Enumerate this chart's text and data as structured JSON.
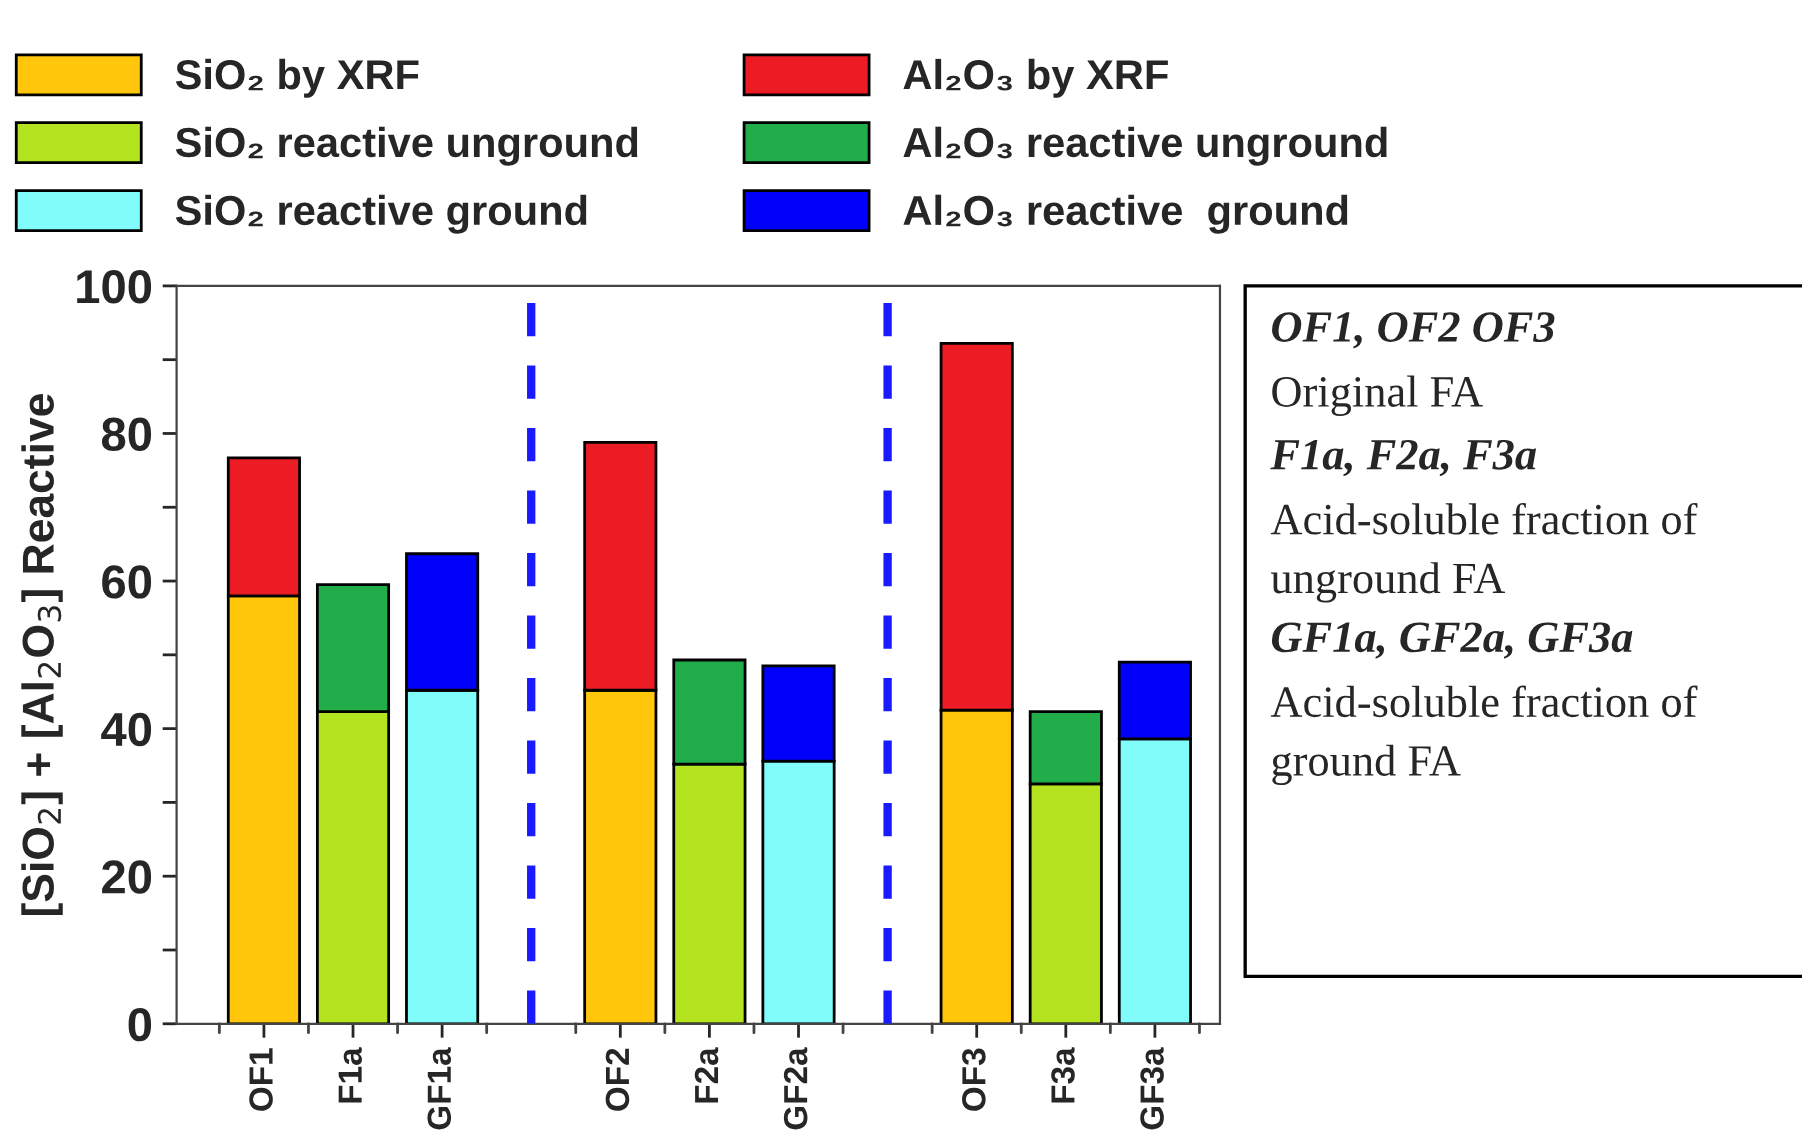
{
  "chart_data": {
    "type": "bar",
    "stacked": true,
    "ylabel": "[SiO$_{2}$] + [Al$_{2}$O$_{3}$] Reactive",
    "categories": [
      "OF1",
      "F1a",
      "GF1a",
      null,
      "OF2",
      "F2a",
      "GF2a",
      null,
      "OF3",
      "F3a",
      "GF3a"
    ],
    "ylim": [
      0,
      100
    ],
    "yticks": [
      0,
      {
        "value": 10,
        "label": null
      },
      20,
      {
        "value": 30,
        "label": null
      },
      40,
      {
        "value": 50,
        "label": null
      },
      60,
      {
        "value": 70,
        "label": null
      },
      80,
      {
        "value": 90,
        "label": null
      },
      100
    ],
    "series": [
      {
        "name": "SiO₂ by XRF",
        "color": "#ffc60b",
        "values": [
          58.0,
          null,
          null,
          null,
          45.2,
          null,
          null,
          null,
          42.5,
          null,
          null
        ]
      },
      {
        "name": "SiO₂ reactive unground",
        "color": "#b3e41f",
        "values": [
          null,
          42.3,
          null,
          null,
          null,
          35.2,
          null,
          null,
          null,
          32.5,
          null
        ]
      },
      {
        "name": "SiO₂ reactive ground",
        "color": "#80fdfb",
        "values": [
          null,
          null,
          45.2,
          null,
          null,
          null,
          35.6,
          null,
          null,
          null,
          38.6
        ]
      },
      {
        "name": "Al₂O₃ by XRF",
        "color": "#ec1c24",
        "values": [
          18.7,
          null,
          null,
          null,
          33.6,
          null,
          null,
          null,
          49.7,
          null,
          null
        ]
      },
      {
        "name": "Al₂O₃ reactive unground",
        "color": "#22ad4b",
        "values": [
          null,
          17.2,
          null,
          null,
          null,
          14.1,
          null,
          null,
          null,
          9.8,
          null
        ]
      },
      {
        "name": "Al₂O₃ reactive  ground",
        "color": "#0000fb",
        "values": [
          null,
          null,
          18.5,
          null,
          null,
          null,
          12.9,
          null,
          null,
          null,
          10.4
        ]
      }
    ],
    "legend": "top",
    "annotations": [
      "OF1, OF2 OF3",
      "Original FA",
      "F1a, F2a, F3a",
      "Acid-soluble fraction of unground FA",
      "GF1a, GF2a, GF3a",
      "Acid-soluble fraction of ground FA"
    ]
  }
}
